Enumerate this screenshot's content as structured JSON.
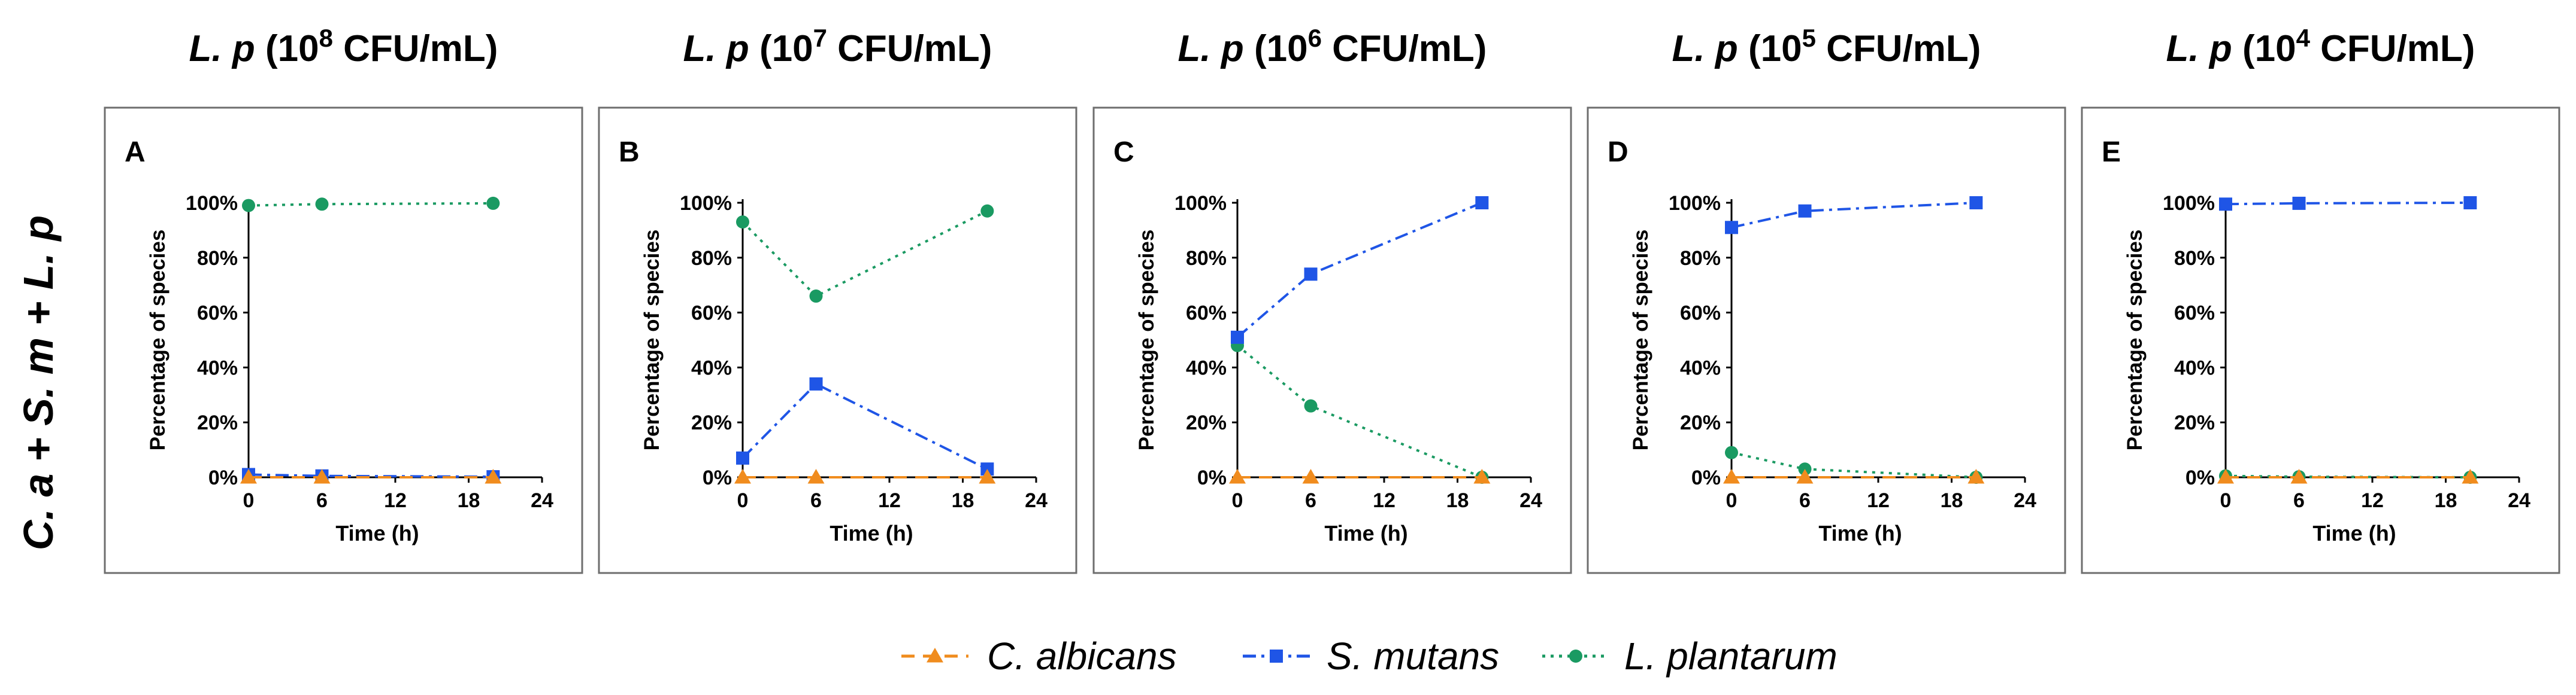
{
  "row_label": "C. a + S. m + L. p",
  "colors": {
    "c_albicans": "#f08c1e",
    "s_mutans": "#1f55e6",
    "l_plantarum": "#1a9a62",
    "axis": "#000000",
    "frame": "#6e6e6e"
  },
  "legend": [
    {
      "name": "C. albicans",
      "series": "c_albicans",
      "marker": "triangle",
      "dash": "dash"
    },
    {
      "name": "S. mutans",
      "series": "s_mutans",
      "marker": "square",
      "dash": "dashdot"
    },
    {
      "name": "L. plantarum",
      "series": "l_plantarum",
      "marker": "circle",
      "dash": "dot"
    }
  ],
  "chart_data": [
    {
      "type": "line",
      "panel_label": "A",
      "title_prefix": "L. p",
      "title_base": "(10",
      "title_exp": "8",
      "title_suffix": " CFU/mL)",
      "xlabel": "Time (h)",
      "ylabel": "Percentage of species",
      "xlim": [
        0,
        24
      ],
      "ylim": [
        0,
        100
      ],
      "xticks": [
        "0",
        "6",
        "12",
        "18",
        "24"
      ],
      "yticks": [
        "0%",
        "20%",
        "40%",
        "60%",
        "80%",
        "100%"
      ],
      "x": [
        0,
        6,
        20
      ],
      "series": [
        {
          "name": "C. albicans",
          "key": "c_albicans",
          "values": [
            0,
            0,
            0
          ]
        },
        {
          "name": "S. mutans",
          "key": "s_mutans",
          "values": [
            1,
            0.5,
            0.2
          ]
        },
        {
          "name": "L. plantarum",
          "key": "l_plantarum",
          "values": [
            99,
            99.5,
            99.8
          ]
        }
      ]
    },
    {
      "type": "line",
      "panel_label": "B",
      "title_prefix": "L. p",
      "title_base": "(10",
      "title_exp": "7",
      "title_suffix": " CFU/mL)",
      "xlabel": "Time (h)",
      "ylabel": "Percentage of species",
      "xlim": [
        0,
        24
      ],
      "ylim": [
        0,
        100
      ],
      "xticks": [
        "0",
        "6",
        "12",
        "18",
        "24"
      ],
      "yticks": [
        "0%",
        "20%",
        "40%",
        "60%",
        "80%",
        "100%"
      ],
      "x": [
        0,
        6,
        20
      ],
      "series": [
        {
          "name": "C. albicans",
          "key": "c_albicans",
          "values": [
            0,
            0,
            0
          ]
        },
        {
          "name": "S. mutans",
          "key": "s_mutans",
          "values": [
            7,
            34,
            3
          ]
        },
        {
          "name": "L. plantarum",
          "key": "l_plantarum",
          "values": [
            93,
            66,
            97
          ]
        }
      ]
    },
    {
      "type": "line",
      "panel_label": "C",
      "title_prefix": "L. p",
      "title_base": "(10",
      "title_exp": "6",
      "title_suffix": " CFU/mL)",
      "xlabel": "Time (h)",
      "ylabel": "Percentage of species",
      "xlim": [
        0,
        24
      ],
      "ylim": [
        0,
        100
      ],
      "xticks": [
        "0",
        "6",
        "12",
        "18",
        "24"
      ],
      "yticks": [
        "0%",
        "20%",
        "40%",
        "60%",
        "80%",
        "100%"
      ],
      "x": [
        0,
        6,
        20
      ],
      "series": [
        {
          "name": "C. albicans",
          "key": "c_albicans",
          "values": [
            0,
            0,
            0
          ]
        },
        {
          "name": "S. mutans",
          "key": "s_mutans",
          "values": [
            51,
            74,
            100
          ]
        },
        {
          "name": "L. plantarum",
          "key": "l_plantarum",
          "values": [
            48,
            26,
            0
          ]
        }
      ]
    },
    {
      "type": "line",
      "panel_label": "D",
      "title_prefix": "L. p",
      "title_base": "(10",
      "title_exp": "5",
      "title_suffix": " CFU/mL)",
      "xlabel": "Time (h)",
      "ylabel": "Percentage of species",
      "xlim": [
        0,
        24
      ],
      "ylim": [
        0,
        100
      ],
      "xticks": [
        "0",
        "6",
        "12",
        "18",
        "24"
      ],
      "yticks": [
        "0%",
        "20%",
        "40%",
        "60%",
        "80%",
        "100%"
      ],
      "x": [
        0,
        6,
        20
      ],
      "series": [
        {
          "name": "C. albicans",
          "key": "c_albicans",
          "values": [
            0,
            0,
            0
          ]
        },
        {
          "name": "S. mutans",
          "key": "s_mutans",
          "values": [
            91,
            97,
            100
          ]
        },
        {
          "name": "L. plantarum",
          "key": "l_plantarum",
          "values": [
            9,
            3,
            0
          ]
        }
      ]
    },
    {
      "type": "line",
      "panel_label": "E",
      "title_prefix": "L. p",
      "title_base": "(10",
      "title_exp": "4",
      "title_suffix": " CFU/mL)",
      "xlabel": "Time (h)",
      "ylabel": "Percentage of species",
      "xlim": [
        0,
        24
      ],
      "ylim": [
        0,
        100
      ],
      "xticks": [
        "0",
        "6",
        "12",
        "18",
        "24"
      ],
      "yticks": [
        "0%",
        "20%",
        "40%",
        "60%",
        "80%",
        "100%"
      ],
      "x": [
        0,
        6,
        20
      ],
      "series": [
        {
          "name": "C. albicans",
          "key": "c_albicans",
          "values": [
            0,
            0,
            0
          ]
        },
        {
          "name": "S. mutans",
          "key": "s_mutans",
          "values": [
            99.5,
            99.8,
            100
          ]
        },
        {
          "name": "L. plantarum",
          "key": "l_plantarum",
          "values": [
            0.5,
            0.2,
            0
          ]
        }
      ]
    }
  ]
}
